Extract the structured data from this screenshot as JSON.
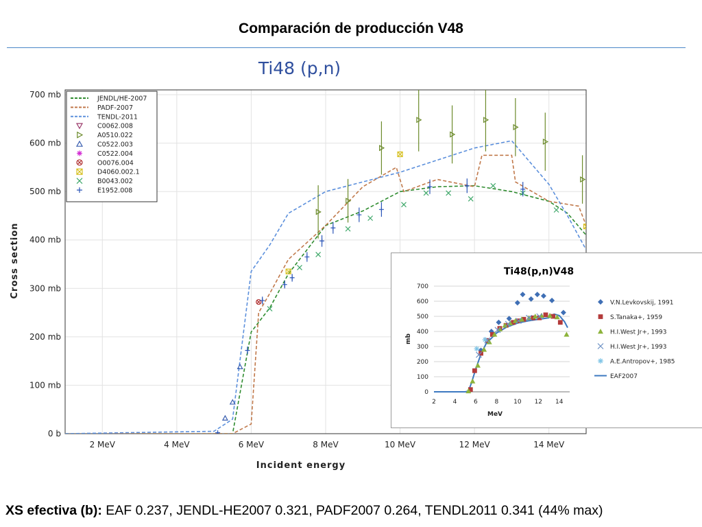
{
  "slide": {
    "title": "Comparación de producción V48",
    "footer_label": "XS efectiva (b):",
    "footer_text": " EAF 0.237, JENDL-HE2007 0.321, PADF2007 0.264, TENDL2011 0.341  (44% max)"
  },
  "colors": {
    "accent_rule": "#4a86c8",
    "main_title": "#2f4f9e"
  },
  "chart_data": [
    {
      "type": "line",
      "title": "Ti48 (p,n)",
      "xlabel": "Incident energy",
      "ylabel": "Cross section",
      "xlim": [
        1,
        15
      ],
      "ylim": [
        0,
        710
      ],
      "x_unit": "MeV",
      "y_unit": "mb",
      "xticks": [
        2,
        4,
        6,
        8,
        10,
        12,
        14
      ],
      "xtick_labels": [
        "2 MeV",
        "4 MeV",
        "6 MeV",
        "8 MeV",
        "10 MeV",
        "12 MeV",
        "14 MeV"
      ],
      "yticks": [
        0,
        100,
        200,
        300,
        400,
        500,
        600,
        700
      ],
      "ytick_labels": [
        "0 b",
        "100 mb",
        "200 mb",
        "300 mb",
        "400 mb",
        "500 mb",
        "600 mb",
        "700 mb"
      ],
      "grid": true,
      "legend_position": "top-left",
      "series": [
        {
          "name": "JENDL/HE-2007",
          "kind": "line",
          "color": "#2e8b2e",
          "x": [
            1,
            5,
            5.5,
            6,
            6.5,
            7,
            7.5,
            8,
            9,
            10,
            11,
            12,
            13,
            14,
            14.5,
            15
          ],
          "y": [
            0,
            0,
            0,
            210,
            260,
            330,
            380,
            430,
            460,
            500,
            510,
            512,
            500,
            480,
            455,
            410
          ]
        },
        {
          "name": "PADF-2007",
          "kind": "line",
          "color": "#c0784a",
          "x": [
            1,
            5.5,
            6,
            6.2,
            6.5,
            7,
            7.5,
            8,
            9,
            9.9,
            10.1,
            11,
            12,
            12.2,
            13,
            13.1,
            14,
            14.8,
            15
          ],
          "y": [
            0,
            0,
            20,
            250,
            290,
            360,
            395,
            430,
            510,
            550,
            500,
            525,
            510,
            575,
            575,
            520,
            480,
            470,
            430
          ]
        },
        {
          "name": "TENDL-2011",
          "kind": "line",
          "color": "#5b8fdc",
          "x": [
            1,
            5,
            5.5,
            6,
            6.5,
            7,
            8,
            9,
            10,
            11,
            12,
            13,
            14,
            14.5,
            15
          ],
          "y": [
            0,
            5,
            30,
            335,
            390,
            455,
            500,
            520,
            540,
            565,
            590,
            605,
            515,
            450,
            380
          ]
        },
        {
          "name": "C0062.008",
          "kind": "scatter",
          "marker": "tri-down",
          "color": "#9b3a6b",
          "x": [],
          "y": []
        },
        {
          "name": "A0510.022",
          "kind": "scatter",
          "marker": "tri-right",
          "color": "#6b8a2a",
          "x": [
            7.8,
            8.6,
            9.5,
            10.5,
            11.4,
            12.3,
            13.1,
            13.9,
            14.9
          ],
          "y": [
            458,
            481,
            590,
            648,
            618,
            648,
            633,
            603,
            525
          ],
          "err": [
            55,
            45,
            55,
            65,
            60,
            65,
            60,
            60,
            50
          ]
        },
        {
          "name": "C0522.003",
          "kind": "scatter",
          "marker": "tri-up",
          "color": "#3a5fb0",
          "x": [
            5.3,
            5.5,
            5.7
          ],
          "y": [
            32,
            65,
            138
          ]
        },
        {
          "name": "C0522.004",
          "kind": "scatter",
          "marker": "asterisk",
          "color": "#d22ad2",
          "x": [],
          "y": []
        },
        {
          "name": "O0076.004",
          "kind": "scatter",
          "marker": "circle-x",
          "color": "#b03030",
          "x": [
            6.2
          ],
          "y": [
            272
          ]
        },
        {
          "name": "D4060.002.1",
          "kind": "scatter",
          "marker": "square-x",
          "color": "#d6c020",
          "x": [
            7,
            10,
            15
          ],
          "y": [
            335,
            577,
            428
          ]
        },
        {
          "name": "B0043.002",
          "kind": "scatter",
          "marker": "x",
          "color": "#3fa86a",
          "x": [
            6.5,
            7.3,
            7.8,
            8.6,
            9.2,
            10.1,
            10.7,
            11.3,
            11.9,
            12.5,
            13.3,
            14.2
          ],
          "y": [
            258,
            343,
            370,
            423,
            445,
            473,
            497,
            497,
            485,
            512,
            497,
            462
          ]
        },
        {
          "name": "E1952.008",
          "kind": "scatter",
          "marker": "plus",
          "color": "#2a55b8",
          "x": [
            5.1,
            5.9,
            6.3,
            6.9,
            7.1,
            7.5,
            7.9,
            8.2,
            8.9,
            9.5,
            10.8,
            11.8,
            13.3
          ],
          "y": [
            2,
            172,
            275,
            308,
            322,
            365,
            398,
            425,
            452,
            463,
            510,
            512,
            505
          ],
          "err": [
            3,
            8,
            8,
            8,
            8,
            10,
            12,
            12,
            15,
            15,
            15,
            15,
            15
          ]
        }
      ]
    },
    {
      "type": "line",
      "title": "Ti48(p,n)V48",
      "xlabel": "MeV",
      "ylabel": "mb",
      "xlim": [
        2,
        15
      ],
      "ylim": [
        0,
        700
      ],
      "xticks": [
        2,
        4,
        6,
        8,
        10,
        12,
        14
      ],
      "yticks": [
        0,
        100,
        200,
        300,
        400,
        500,
        600,
        700
      ],
      "legend_position": "right",
      "series": [
        {
          "name": "V.N.Levkovskij, 1991",
          "kind": "scatter",
          "marker": "diamond",
          "color": "#3f6fb5",
          "x": [
            6.5,
            7.5,
            8.2,
            9.2,
            10,
            10.5,
            11.3,
            11.9,
            12.5,
            13.3,
            14.4
          ],
          "y": [
            275,
            400,
            460,
            485,
            590,
            645,
            615,
            645,
            635,
            605,
            525
          ]
        },
        {
          "name": "S.Tanaka+, 1959",
          "kind": "scatter",
          "marker": "square",
          "color": "#b33b3b",
          "x": [
            5.5,
            5.9,
            6.5,
            7.1,
            7.6,
            8.3,
            8.9,
            9.6,
            10.1,
            10.6,
            11.5,
            12.1,
            12.7,
            13.4,
            14.1
          ],
          "y": [
            15,
            140,
            255,
            340,
            380,
            420,
            440,
            460,
            470,
            480,
            490,
            490,
            510,
            500,
            460
          ]
        },
        {
          "name": "H.I.West Jr+, 1993",
          "kind": "scatter",
          "marker": "triangle",
          "color": "#8db33b",
          "x": [
            5.3,
            5.7,
            6.2,
            6.8,
            7.3,
            7.8,
            8.3,
            8.8,
            9.3,
            9.8,
            10.4,
            11.1,
            11.7,
            12.3,
            13.1,
            13.8,
            14.7
          ],
          "y": [
            5,
            70,
            175,
            280,
            330,
            380,
            415,
            440,
            455,
            470,
            480,
            490,
            500,
            505,
            505,
            495,
            380
          ]
        },
        {
          "name": "H.I.West Jr+, 1993",
          "kind": "scatter",
          "marker": "x",
          "color": "#6a8fc4",
          "x": [
            6.3,
            7.1,
            8.1,
            9.1,
            10.1,
            11.1,
            12.1
          ],
          "y": [
            245,
            340,
            410,
            450,
            470,
            490,
            500
          ]
        },
        {
          "name": "A.E.Antropov+, 1985",
          "kind": "scatter",
          "marker": "asterisk",
          "color": "#7fc4e6",
          "x": [
            6.1,
            6.9
          ],
          "y": [
            285,
            345
          ]
        },
        {
          "name": "EAF2007",
          "kind": "line",
          "color": "#3c78c0",
          "x": [
            2,
            5,
            5.3,
            5.6,
            6,
            6.5,
            7,
            8,
            9,
            10,
            11,
            12,
            13,
            13.5,
            14,
            14.5,
            14.8
          ],
          "y": [
            0,
            0,
            5,
            60,
            150,
            250,
            320,
            390,
            430,
            455,
            470,
            480,
            490,
            515,
            505,
            465,
            425
          ]
        }
      ]
    }
  ]
}
